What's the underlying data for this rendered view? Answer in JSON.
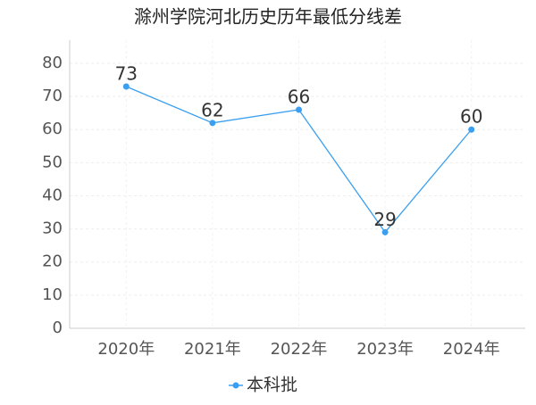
{
  "chart_data": {
    "type": "line",
    "title": "滁州学院河北历史历年最低分线差",
    "categories": [
      "2020年",
      "2021年",
      "2022年",
      "2023年",
      "2024年"
    ],
    "series": [
      {
        "name": "本科批",
        "color": "#3a9ff0",
        "values": [
          73,
          62,
          66,
          29,
          60
        ]
      }
    ],
    "ylim": [
      0,
      87
    ],
    "yticks": [
      0,
      10,
      20,
      30,
      40,
      50,
      60,
      70,
      80
    ],
    "grid": true,
    "legend": "bottom"
  }
}
